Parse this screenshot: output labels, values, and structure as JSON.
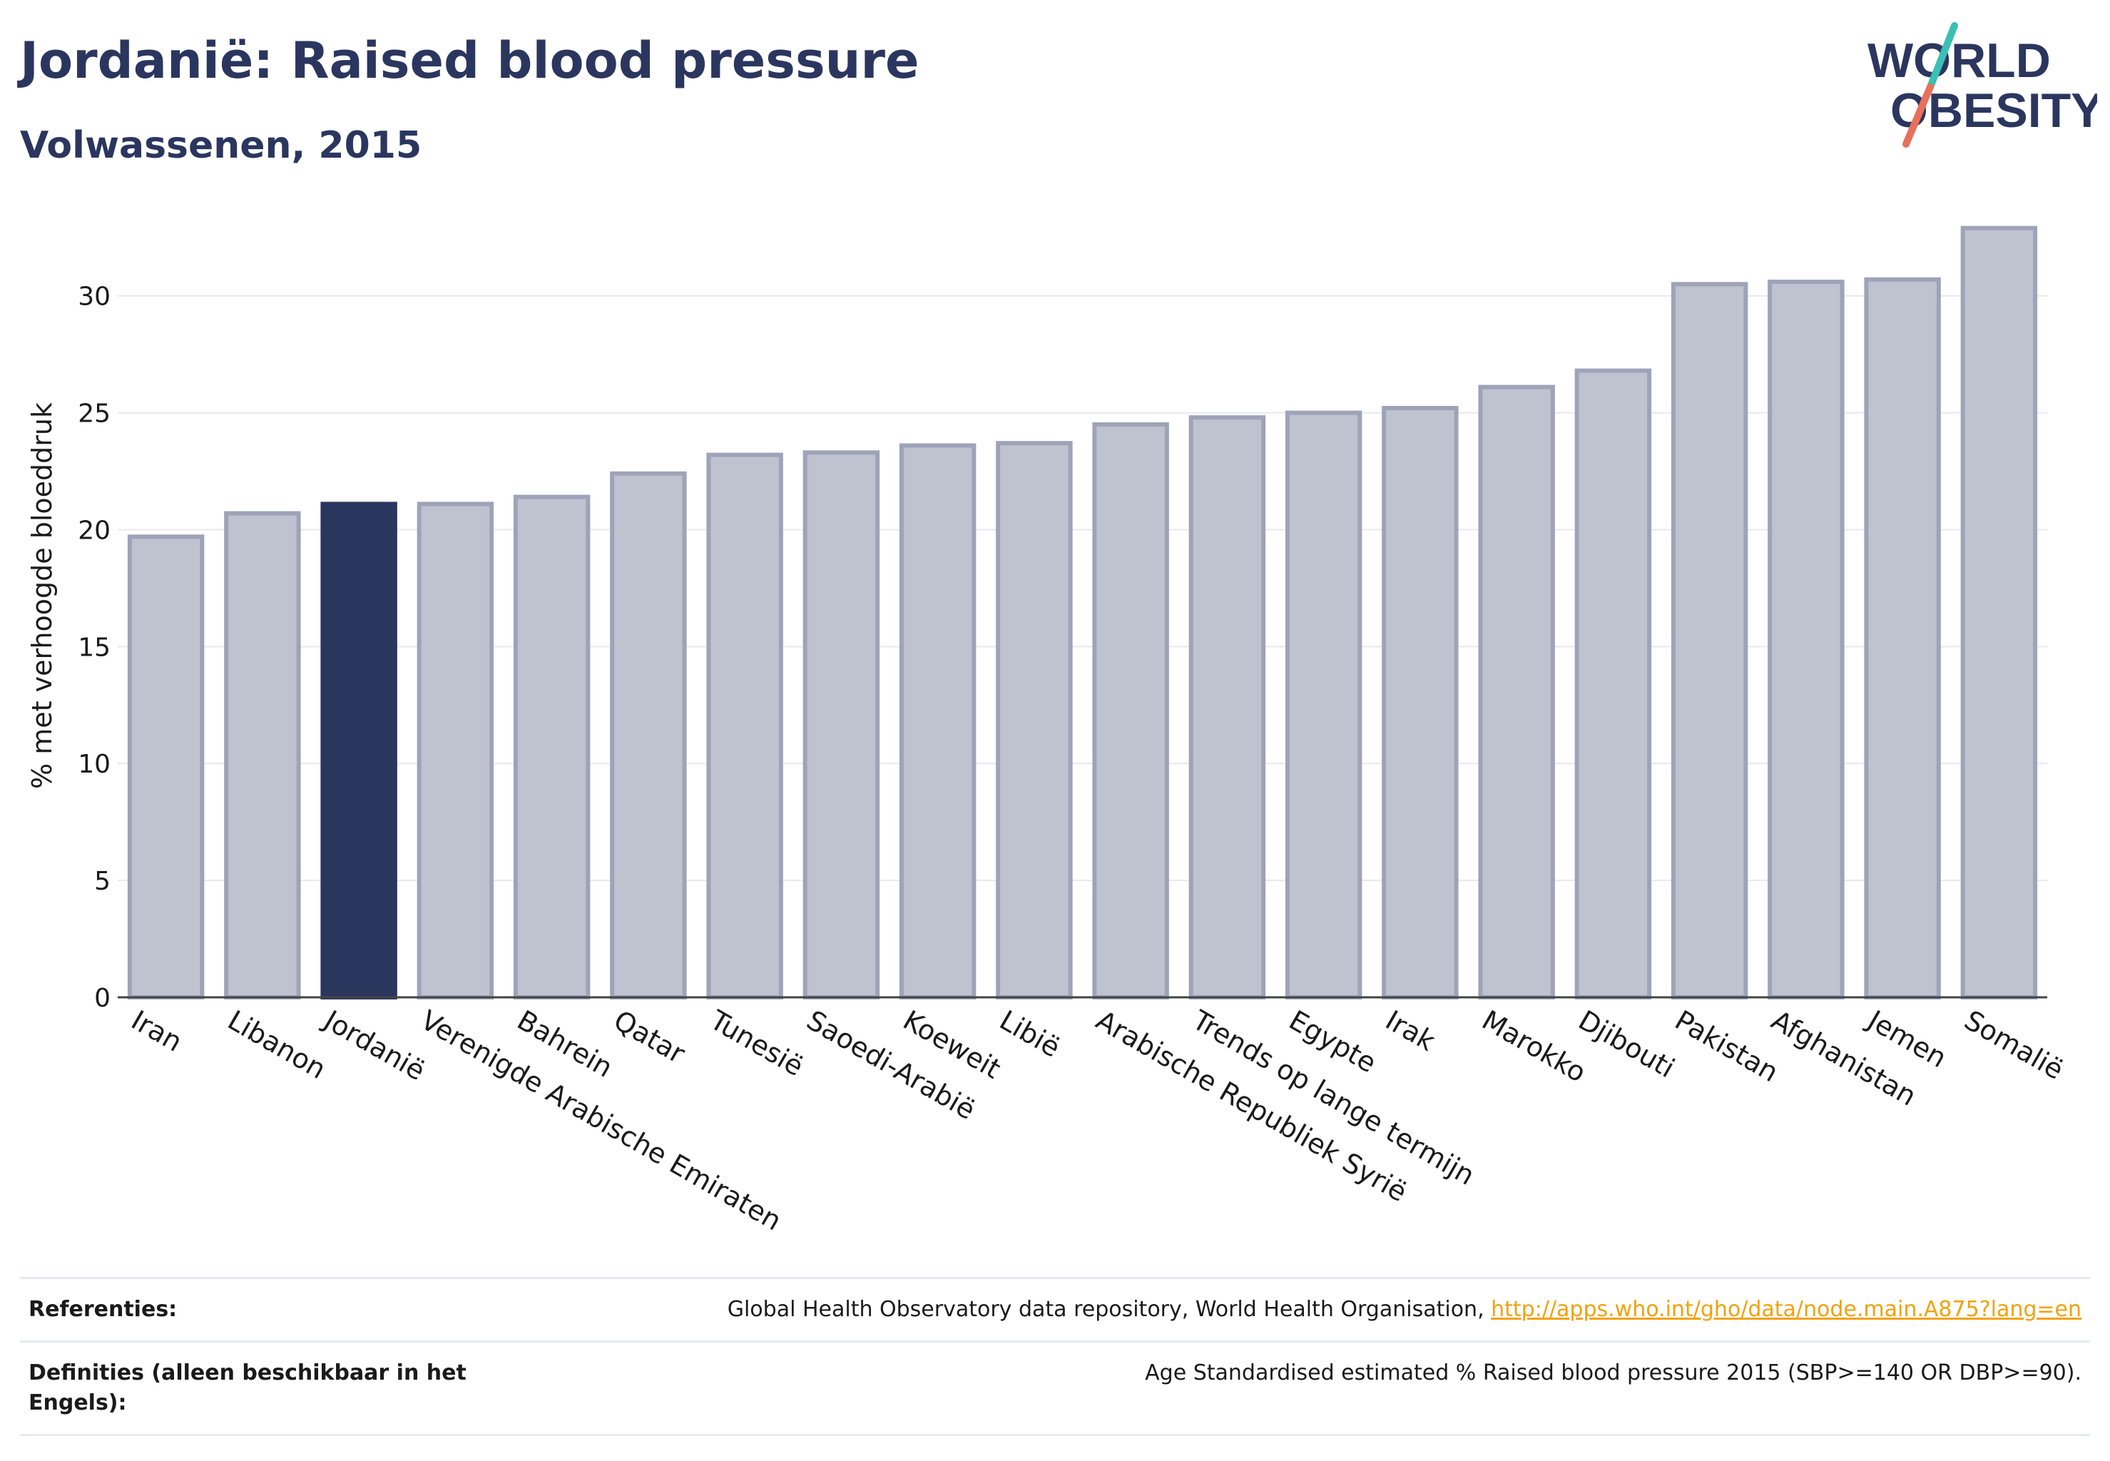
{
  "header": {
    "title": "Jordanië: Raised blood pressure",
    "subtitle": "Volwassenen, 2015"
  },
  "logo": {
    "line1": "WORLD",
    "line2": "OBESITY",
    "colors": {
      "text": "#2b365f",
      "slash_top": "#3cbfb4",
      "slash_bottom": "#e8705a"
    }
  },
  "chart_data": {
    "type": "bar",
    "ylabel": "% met verhoogde bloeddruk",
    "ylim": [
      0,
      33.5
    ],
    "yticks": [
      0,
      5,
      10,
      15,
      20,
      25,
      30
    ],
    "grid": true,
    "highlight": "Jordanië",
    "categories": [
      "Iran",
      "Libanon",
      "Jordanië",
      "Verenigde Arabische Emiraten",
      "Bahrein",
      "Qatar",
      "Tunesië",
      "Saoedi-Arabië",
      "Koeweit",
      "Libië",
      "Arabische Republiek Syrië",
      "Trends op lange termijn",
      "Egypte",
      "Irak",
      "Marokko",
      "Djibouti",
      "Pakistan",
      "Afghanistan",
      "Jemen",
      "Somalië"
    ],
    "values": [
      19.7,
      20.7,
      21.1,
      21.1,
      21.4,
      22.4,
      23.2,
      23.3,
      23.6,
      23.7,
      24.5,
      24.8,
      25.0,
      25.2,
      26.1,
      26.8,
      30.5,
      30.6,
      30.7,
      32.9
    ],
    "colors": {
      "bar": "#bfc2cf",
      "bar_edge": "#9ea3b8",
      "highlight": "#2b365f"
    }
  },
  "references": [
    {
      "label": "Referenties:",
      "text": "Global Health Observatory data repository, World Health Organisation, ",
      "link": "http://apps.who.int/gho/data/node.main.A875?lang=en"
    },
    {
      "label": "Definities (alleen beschikbaar in het Engels):",
      "text": "Age Standardised estimated % Raised blood pressure 2015 (SBP>=140 OR DBP>=90).",
      "link": ""
    }
  ]
}
